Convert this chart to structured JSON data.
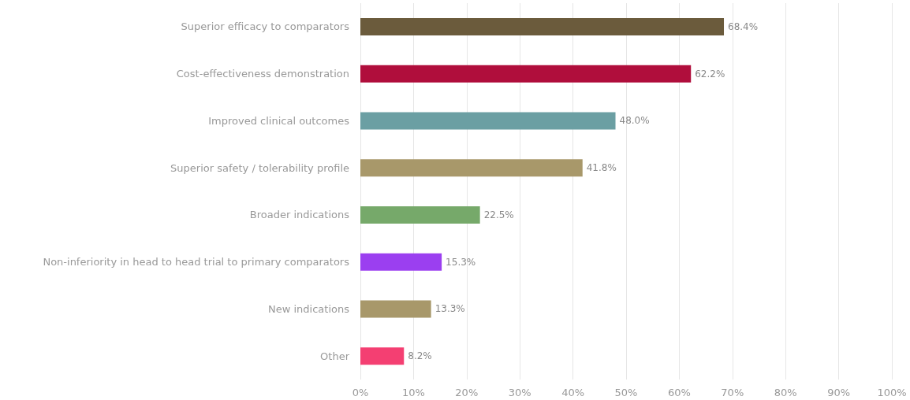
{
  "chart_data": {
    "type": "bar",
    "orientation": "horizontal",
    "categories": [
      "Superior efficacy to comparators",
      "Cost-effectiveness demonstration",
      "Improved clinical outcomes",
      "Superior safety / tolerability profile",
      "Broader indications",
      "Non-inferiority in head to head trial to primary comparators",
      "New indications",
      "Other"
    ],
    "values": [
      68.4,
      62.2,
      48.0,
      41.8,
      22.5,
      15.3,
      13.3,
      8.2
    ],
    "colors": [
      "#6b5b3c",
      "#b00e3c",
      "#6b9fa3",
      "#a8986a",
      "#76a96a",
      "#9b3ff0",
      "#a8986a",
      "#f43f72"
    ],
    "value_labels": [
      "68.4%",
      "62.2%",
      "48.0%",
      "41.8%",
      "22.5%",
      "15.3%",
      "13.3%",
      "8.2%"
    ],
    "xlim": [
      0,
      100
    ],
    "xticks": [
      {
        "value": 0,
        "label": "0%"
      },
      {
        "value": 10,
        "label": "10%"
      },
      {
        "value": 20,
        "label": "20%"
      },
      {
        "value": 30,
        "label": "30%"
      },
      {
        "value": 40,
        "label": "40%"
      },
      {
        "value": 50,
        "label": "50%"
      },
      {
        "value": 60,
        "label": "60%"
      },
      {
        "value": 70,
        "label": "70%"
      },
      {
        "value": 80,
        "label": "80%"
      },
      {
        "value": 90,
        "label": "90%"
      },
      {
        "value": 100,
        "label": "100%"
      }
    ],
    "grid": "x"
  }
}
